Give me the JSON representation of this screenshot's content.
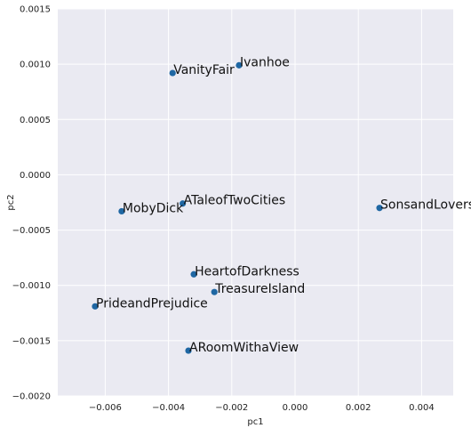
{
  "chart_data": {
    "type": "scatter",
    "title": "",
    "xlabel": "pc1",
    "ylabel": "pc2",
    "xlim": [
      -0.0075,
      0.005
    ],
    "ylim": [
      -0.002,
      0.0015
    ],
    "grid": true,
    "background": "#EAEAF2",
    "grid_color": "#FFFFFF",
    "marker_color": "#1F67A3",
    "x_ticks": [
      -0.006,
      -0.004,
      -0.002,
      0.0,
      0.002,
      0.004
    ],
    "x_tick_labels": [
      "−0.006",
      "−0.004",
      "−0.002",
      "0.000",
      "0.002",
      "0.004"
    ],
    "y_ticks": [
      -0.002,
      -0.0015,
      -0.001,
      -0.0005,
      0.0,
      0.0005,
      0.001,
      0.0015
    ],
    "y_tick_labels": [
      "−0.0020",
      "−0.0015",
      "−0.0010",
      "−0.0005",
      "0.0000",
      "0.0005",
      "0.0010",
      "0.0015"
    ],
    "points": [
      {
        "label": "Ivanhoe",
        "x": -0.00177,
        "y": 0.00099
      },
      {
        "label": "VanityFair",
        "x": -0.00387,
        "y": 0.00092
      },
      {
        "label": "ATaleofTwoCities",
        "x": -0.00355,
        "y": -0.00026
      },
      {
        "label": "MobyDick",
        "x": -0.00548,
        "y": -0.00033
      },
      {
        "label": "SonsandLovers",
        "x": 0.00267,
        "y": -0.0003
      },
      {
        "label": "HeartofDarkness",
        "x": -0.0032,
        "y": -0.0009
      },
      {
        "label": "TreasureIsland",
        "x": -0.00255,
        "y": -0.00106
      },
      {
        "label": "PrideandPrejudice",
        "x": -0.00632,
        "y": -0.00119
      },
      {
        "label": "ARoomWithaView",
        "x": -0.00337,
        "y": -0.00159
      }
    ]
  }
}
